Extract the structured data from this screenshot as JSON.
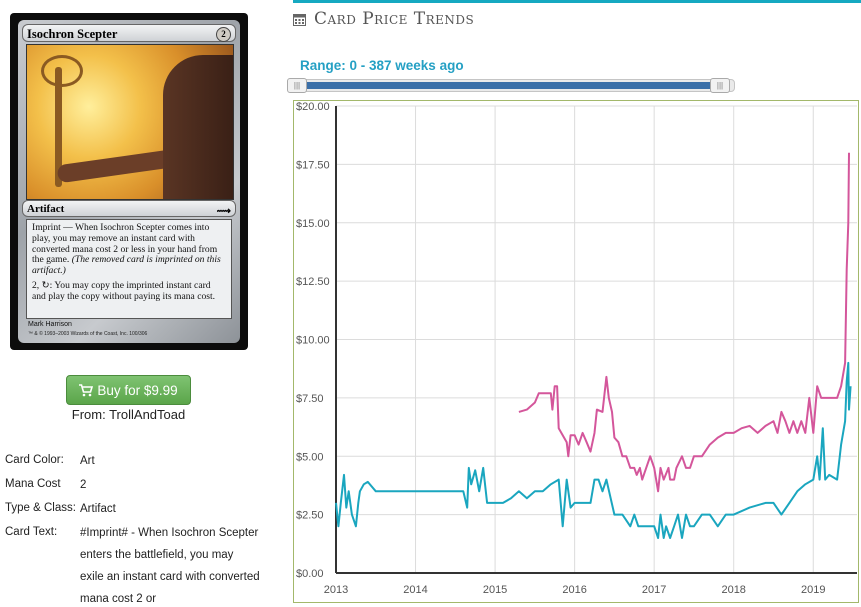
{
  "card": {
    "name": "Isochron Scepter",
    "mana_cost": "2",
    "type_line": "Artifact",
    "rules_text_1": "Imprint — When Isochron Scepter comes into play, you may remove an instant card with converted mana cost 2 or less in your hand from the game.",
    "reminder": "(The removed card is imprinted on this artifact.)",
    "rules_text_2": "2, ↻: You may copy the imprinted instant card and play the copy without paying its mana cost.",
    "artist": "Mark Harrison",
    "copyright": "™ & © 1993–2003 Wizards of the Coast, Inc. 100/306"
  },
  "purchase": {
    "button_label": "Buy for $9.99",
    "from": "From: TrollAndToad"
  },
  "details": [
    {
      "label": "Card Color:",
      "value": "Art"
    },
    {
      "label": "Mana Cost",
      "value": "2"
    },
    {
      "label": "Type & Class:",
      "value": "Artifact"
    },
    {
      "label": "Card Text:",
      "value": "#Imprint# - When Isochron Scepter enters the battlefield, you may exile an instant card with converted mana cost 2 or"
    }
  ],
  "section": {
    "title": "Card Price Trends",
    "range_label": "Range: 0 - 387 weeks ago",
    "handle_glyph": "|||"
  },
  "colors": {
    "accent": "#16a9c1",
    "buy_green": "#5ba54a",
    "series_pink": "#d4569b",
    "series_teal": "#1aa6bf"
  },
  "chart_data": {
    "type": "line",
    "x_range": [
      2013.0,
      2019.55
    ],
    "ylim": [
      0,
      20
    ],
    "x_ticks": [
      "2013",
      "2014",
      "2015",
      "2016",
      "2017",
      "2018",
      "2019"
    ],
    "y_ticks": [
      "$0.00",
      "$2.50",
      "$5.00",
      "$7.50",
      "$10.00",
      "$12.50",
      "$15.00",
      "$17.50",
      "$20.00"
    ],
    "grid": true,
    "series": [
      {
        "color": "#d4569b",
        "points": [
          [
            2015.3,
            6.9
          ],
          [
            2015.4,
            7.0
          ],
          [
            2015.5,
            7.3
          ],
          [
            2015.55,
            7.7
          ],
          [
            2015.7,
            7.7
          ],
          [
            2015.72,
            7.0
          ],
          [
            2015.75,
            8.0
          ],
          [
            2015.78,
            8.0
          ],
          [
            2015.8,
            6.2
          ],
          [
            2015.85,
            5.9
          ],
          [
            2015.9,
            5.6
          ],
          [
            2015.92,
            5.0
          ],
          [
            2015.95,
            5.9
          ],
          [
            2016.0,
            5.9
          ],
          [
            2016.05,
            5.5
          ],
          [
            2016.1,
            6.0
          ],
          [
            2016.15,
            5.6
          ],
          [
            2016.2,
            5.2
          ],
          [
            2016.25,
            6.0
          ],
          [
            2016.28,
            7.0
          ],
          [
            2016.35,
            6.9
          ],
          [
            2016.4,
            8.4
          ],
          [
            2016.43,
            7.5
          ],
          [
            2016.47,
            6.9
          ],
          [
            2016.5,
            5.8
          ],
          [
            2016.55,
            5.6
          ],
          [
            2016.6,
            5.0
          ],
          [
            2016.65,
            5.0
          ],
          [
            2016.7,
            4.5
          ],
          [
            2016.75,
            4.5
          ],
          [
            2016.78,
            4.2
          ],
          [
            2016.82,
            4.5
          ],
          [
            2016.85,
            4.0
          ],
          [
            2016.9,
            4.5
          ],
          [
            2016.95,
            5.0
          ],
          [
            2017.0,
            4.5
          ],
          [
            2017.05,
            3.5
          ],
          [
            2017.08,
            4.5
          ],
          [
            2017.12,
            4.0
          ],
          [
            2017.18,
            4.5
          ],
          [
            2017.2,
            4.0
          ],
          [
            2017.25,
            4.0
          ],
          [
            2017.28,
            4.5
          ],
          [
            2017.35,
            5.0
          ],
          [
            2017.4,
            4.5
          ],
          [
            2017.45,
            4.5
          ],
          [
            2017.5,
            5.0
          ],
          [
            2017.6,
            5.0
          ],
          [
            2017.7,
            5.5
          ],
          [
            2017.8,
            5.8
          ],
          [
            2017.9,
            6.0
          ],
          [
            2018.0,
            6.0
          ],
          [
            2018.1,
            6.2
          ],
          [
            2018.2,
            6.3
          ],
          [
            2018.3,
            6.0
          ],
          [
            2018.4,
            6.3
          ],
          [
            2018.5,
            6.5
          ],
          [
            2018.55,
            6.0
          ],
          [
            2018.6,
            6.9
          ],
          [
            2018.65,
            6.5
          ],
          [
            2018.7,
            6.0
          ],
          [
            2018.75,
            6.5
          ],
          [
            2018.8,
            6.0
          ],
          [
            2018.85,
            6.5
          ],
          [
            2018.9,
            6.0
          ],
          [
            2018.95,
            7.5
          ],
          [
            2019.0,
            6.0
          ],
          [
            2019.05,
            8.0
          ],
          [
            2019.1,
            7.5
          ],
          [
            2019.2,
            7.5
          ],
          [
            2019.3,
            7.5
          ],
          [
            2019.35,
            8.0
          ],
          [
            2019.4,
            9.0
          ],
          [
            2019.42,
            13.0
          ],
          [
            2019.44,
            15.0
          ],
          [
            2019.45,
            18.0
          ]
        ]
      },
      {
        "color": "#1aa6bf",
        "points": [
          [
            2013.0,
            3.0
          ],
          [
            2013.03,
            2.0
          ],
          [
            2013.06,
            3.0
          ],
          [
            2013.1,
            4.2
          ],
          [
            2013.13,
            2.8
          ],
          [
            2013.16,
            3.5
          ],
          [
            2013.2,
            2.5
          ],
          [
            2013.25,
            2.0
          ],
          [
            2013.28,
            3.0
          ],
          [
            2013.3,
            3.5
          ],
          [
            2013.35,
            3.8
          ],
          [
            2013.4,
            3.9
          ],
          [
            2013.5,
            3.5
          ],
          [
            2013.6,
            3.5
          ],
          [
            2013.8,
            3.5
          ],
          [
            2014.0,
            3.5
          ],
          [
            2014.2,
            3.5
          ],
          [
            2014.4,
            3.5
          ],
          [
            2014.6,
            3.5
          ],
          [
            2014.65,
            2.8
          ],
          [
            2014.67,
            4.5
          ],
          [
            2014.7,
            3.8
          ],
          [
            2014.75,
            4.4
          ],
          [
            2014.8,
            3.5
          ],
          [
            2014.85,
            4.5
          ],
          [
            2014.9,
            3.0
          ],
          [
            2015.0,
            3.0
          ],
          [
            2015.1,
            3.0
          ],
          [
            2015.2,
            3.2
          ],
          [
            2015.3,
            3.5
          ],
          [
            2015.4,
            3.2
          ],
          [
            2015.5,
            3.5
          ],
          [
            2015.6,
            3.5
          ],
          [
            2015.7,
            3.8
          ],
          [
            2015.8,
            4.0
          ],
          [
            2015.85,
            2.0
          ],
          [
            2015.9,
            4.0
          ],
          [
            2015.95,
            2.8
          ],
          [
            2016.0,
            3.0
          ],
          [
            2016.1,
            3.0
          ],
          [
            2016.2,
            3.0
          ],
          [
            2016.25,
            4.0
          ],
          [
            2016.3,
            4.0
          ],
          [
            2016.35,
            3.5
          ],
          [
            2016.4,
            4.0
          ],
          [
            2016.5,
            2.5
          ],
          [
            2016.6,
            2.5
          ],
          [
            2016.7,
            2.0
          ],
          [
            2016.75,
            2.5
          ],
          [
            2016.8,
            2.0
          ],
          [
            2016.9,
            2.0
          ],
          [
            2017.0,
            2.0
          ],
          [
            2017.05,
            1.5
          ],
          [
            2017.08,
            2.5
          ],
          [
            2017.12,
            1.5
          ],
          [
            2017.15,
            2.0
          ],
          [
            2017.2,
            1.5
          ],
          [
            2017.25,
            2.0
          ],
          [
            2017.3,
            2.5
          ],
          [
            2017.35,
            1.5
          ],
          [
            2017.4,
            2.5
          ],
          [
            2017.45,
            2.0
          ],
          [
            2017.5,
            2.0
          ],
          [
            2017.6,
            2.5
          ],
          [
            2017.7,
            2.5
          ],
          [
            2017.8,
            2.0
          ],
          [
            2017.9,
            2.5
          ],
          [
            2018.0,
            2.5
          ],
          [
            2018.2,
            2.8
          ],
          [
            2018.4,
            3.0
          ],
          [
            2018.5,
            3.0
          ],
          [
            2018.6,
            2.5
          ],
          [
            2018.7,
            3.0
          ],
          [
            2018.8,
            3.5
          ],
          [
            2018.9,
            3.8
          ],
          [
            2019.0,
            4.0
          ],
          [
            2019.05,
            5.0
          ],
          [
            2019.08,
            4.0
          ],
          [
            2019.12,
            6.2
          ],
          [
            2019.15,
            4.0
          ],
          [
            2019.2,
            4.2
          ],
          [
            2019.3,
            4.0
          ],
          [
            2019.35,
            5.5
          ],
          [
            2019.4,
            6.5
          ],
          [
            2019.42,
            8.2
          ],
          [
            2019.44,
            9.0
          ],
          [
            2019.45,
            7.0
          ],
          [
            2019.47,
            8.0
          ]
        ]
      }
    ]
  }
}
